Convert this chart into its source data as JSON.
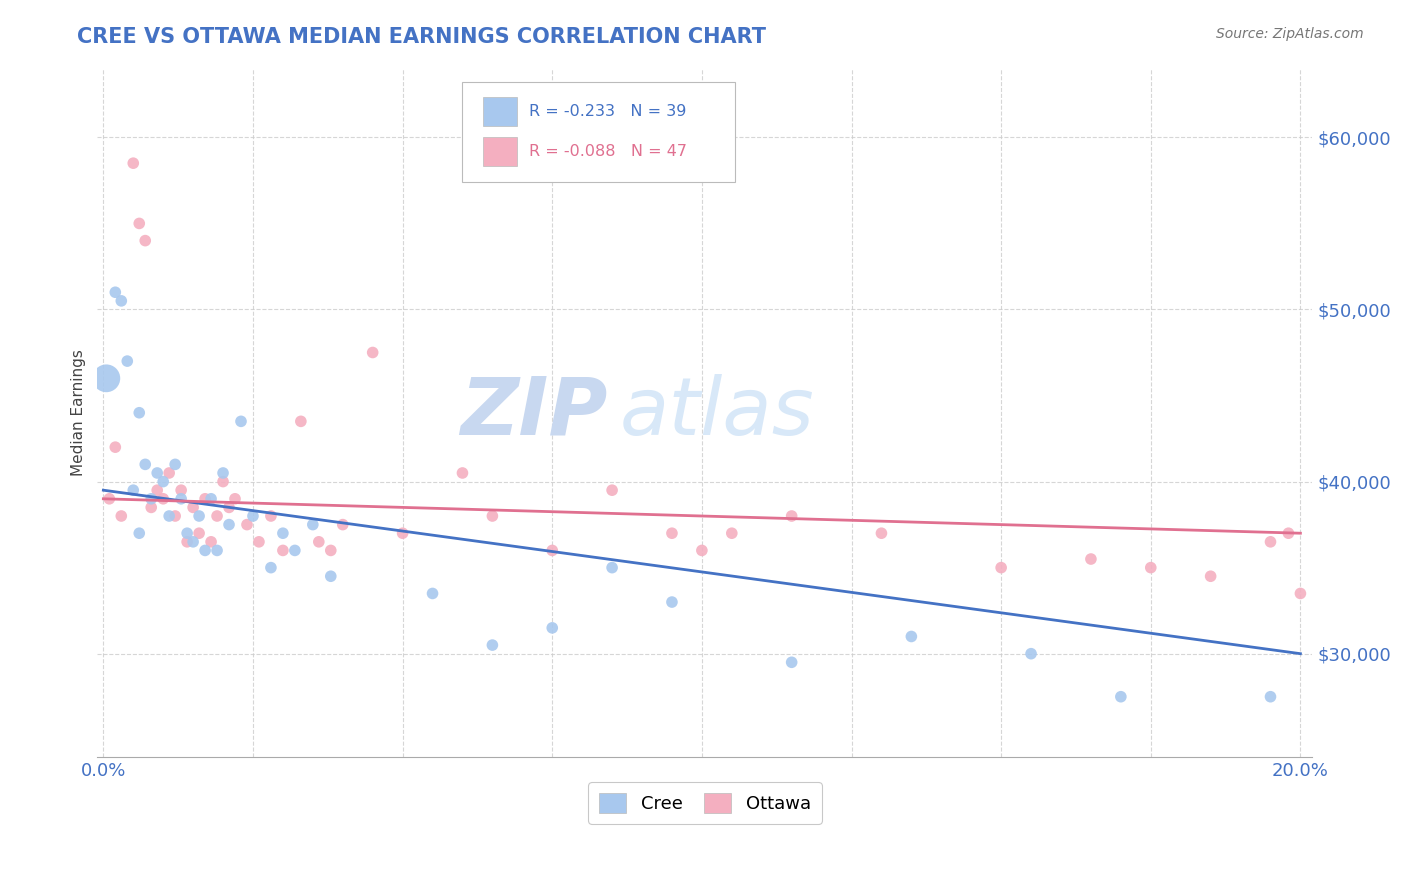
{
  "title": "CREE VS OTTAWA MEDIAN EARNINGS CORRELATION CHART",
  "source": "Source: ZipAtlas.com",
  "ylabel": "Median Earnings",
  "xlim": [
    -0.001,
    0.202
  ],
  "ylim": [
    24000,
    64000
  ],
  "yticks": [
    30000,
    40000,
    50000,
    60000
  ],
  "ytick_labels": [
    "$30,000",
    "$40,000",
    "$50,000",
    "$60,000"
  ],
  "legend_r_cree": "R = -0.233",
  "legend_n_cree": "N = 39",
  "legend_r_ottawa": "R = -0.088",
  "legend_n_ottawa": "N = 47",
  "cree_color": "#a8c8ee",
  "ottawa_color": "#f4afc0",
  "cree_line_color": "#4472c4",
  "ottawa_line_color": "#e07090",
  "tick_color": "#4472c4",
  "watermark_zip": "ZIP",
  "watermark_atlas": "atlas",
  "watermark_color_zip": "#c8d8f0",
  "watermark_color_atlas": "#d8e8f8",
  "grid_color": "#cccccc",
  "cree_x": [
    0.0005,
    0.002,
    0.003,
    0.004,
    0.005,
    0.006,
    0.006,
    0.007,
    0.008,
    0.009,
    0.01,
    0.011,
    0.012,
    0.013,
    0.014,
    0.015,
    0.016,
    0.017,
    0.018,
    0.019,
    0.02,
    0.021,
    0.023,
    0.025,
    0.028,
    0.03,
    0.032,
    0.035,
    0.038,
    0.055,
    0.065,
    0.075,
    0.085,
    0.095,
    0.115,
    0.135,
    0.155,
    0.17,
    0.195
  ],
  "cree_y": [
    46000,
    51000,
    50500,
    47000,
    39500,
    44000,
    37000,
    41000,
    39000,
    40500,
    40000,
    38000,
    41000,
    39000,
    37000,
    36500,
    38000,
    36000,
    39000,
    36000,
    40500,
    37500,
    43500,
    38000,
    35000,
    37000,
    36000,
    37500,
    34500,
    33500,
    30500,
    31500,
    35000,
    33000,
    29500,
    31000,
    30000,
    27500,
    27500
  ],
  "cree_sizes": [
    400,
    70,
    70,
    70,
    70,
    70,
    70,
    70,
    70,
    70,
    70,
    70,
    70,
    70,
    70,
    70,
    70,
    70,
    70,
    70,
    70,
    70,
    70,
    70,
    70,
    70,
    70,
    70,
    70,
    70,
    70,
    70,
    70,
    70,
    70,
    70,
    70,
    70,
    70
  ],
  "ottawa_x": [
    0.001,
    0.002,
    0.003,
    0.005,
    0.006,
    0.007,
    0.008,
    0.009,
    0.01,
    0.011,
    0.012,
    0.013,
    0.014,
    0.015,
    0.016,
    0.017,
    0.018,
    0.019,
    0.02,
    0.021,
    0.022,
    0.024,
    0.026,
    0.028,
    0.03,
    0.033,
    0.036,
    0.038,
    0.04,
    0.045,
    0.05,
    0.06,
    0.065,
    0.075,
    0.085,
    0.095,
    0.1,
    0.105,
    0.115,
    0.13,
    0.15,
    0.165,
    0.175,
    0.185,
    0.195,
    0.198,
    0.2
  ],
  "ottawa_y": [
    39000,
    42000,
    38000,
    58500,
    55000,
    54000,
    38500,
    39500,
    39000,
    40500,
    38000,
    39500,
    36500,
    38500,
    37000,
    39000,
    36500,
    38000,
    40000,
    38500,
    39000,
    37500,
    36500,
    38000,
    36000,
    43500,
    36500,
    36000,
    37500,
    47500,
    37000,
    40500,
    38000,
    36000,
    39500,
    37000,
    36000,
    37000,
    38000,
    37000,
    35000,
    35500,
    35000,
    34500,
    36500,
    37000,
    33500
  ],
  "ottawa_sizes": [
    70,
    70,
    70,
    70,
    70,
    70,
    70,
    70,
    70,
    70,
    70,
    70,
    70,
    70,
    70,
    70,
    70,
    70,
    70,
    70,
    70,
    70,
    70,
    70,
    70,
    70,
    70,
    70,
    70,
    70,
    70,
    70,
    70,
    70,
    70,
    70,
    70,
    70,
    70,
    70,
    70,
    70,
    70,
    70,
    70,
    70,
    70
  ],
  "cree_line_x0": 0.0,
  "cree_line_y0": 39500,
  "cree_line_x1": 0.2,
  "cree_line_y1": 30000,
  "ottawa_line_x0": 0.0,
  "ottawa_line_y0": 39000,
  "ottawa_line_x1": 0.2,
  "ottawa_line_y1": 37000
}
